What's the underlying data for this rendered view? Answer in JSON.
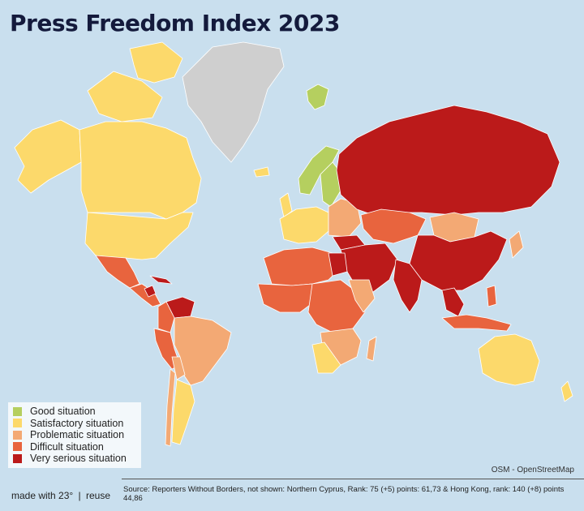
{
  "title": "Press Freedom Index 2023",
  "legend": [
    {
      "label": "Good situation",
      "color": "#b5cf5f"
    },
    {
      "label": "Satisfactory situation",
      "color": "#fcd96b"
    },
    {
      "label": "Problematic situation",
      "color": "#f3a974"
    },
    {
      "label": "Difficult situation",
      "color": "#e8643e"
    },
    {
      "label": "Very serious situation",
      "color": "#bb1a1a"
    }
  ],
  "no_data_color": "#cfcfcf",
  "ocean_color": "#c9dfee",
  "attribution": "OSM - OpenStreetMap",
  "footer": {
    "made_with": "made with 23°",
    "separator": "|",
    "reuse": "reuse",
    "source": "Source: Reporters Without Borders, not shown: Northern Cyprus, Rank: 75 (+5) points: 61,73 & Hong Kong, rank: 140 (+8) points 44,86"
  }
}
